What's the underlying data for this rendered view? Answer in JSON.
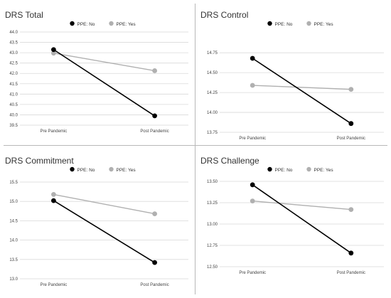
{
  "chart_data": [
    {
      "type": "line",
      "title": "DRS Total",
      "categories": [
        "Pre Pandemic",
        "Post Pandemic"
      ],
      "series": [
        {
          "name": "PPE: No",
          "values": [
            43.15,
            39.95
          ],
          "color": "#000000"
        },
        {
          "name": "PPE: Yes",
          "values": [
            42.98,
            42.13
          ],
          "color": "#b0b0b0"
        }
      ],
      "ylim": [
        39.5,
        44.0
      ],
      "yticks": [
        "39.5",
        "40.0",
        "40.5",
        "41.0",
        "41.5",
        "42.0",
        "42.5",
        "43.0",
        "43.5",
        "44.0"
      ],
      "legend": "top-center",
      "grid": true
    },
    {
      "type": "line",
      "title": "DRS Control",
      "categories": [
        "Pre Pandemic",
        "Post Pandemic"
      ],
      "series": [
        {
          "name": "PPE: No",
          "values": [
            14.68,
            13.86
          ],
          "color": "#000000"
        },
        {
          "name": "PPE: Yes",
          "values": [
            14.34,
            14.29
          ],
          "color": "#b0b0b0"
        }
      ],
      "ylim": [
        13.75,
        14.85
      ],
      "yticks": [
        "13.75",
        "14.00",
        "14.25",
        "14.50",
        "14.75"
      ],
      "legend": "top-center",
      "grid": true
    },
    {
      "type": "line",
      "title": "DRS Commitment",
      "categories": [
        "Pre Pandemic",
        "Post Pandemic"
      ],
      "series": [
        {
          "name": "PPE: No",
          "values": [
            15.02,
            13.42
          ],
          "color": "#000000"
        },
        {
          "name": "PPE: Yes",
          "values": [
            15.18,
            14.68
          ],
          "color": "#b0b0b0"
        }
      ],
      "ylim": [
        13.0,
        15.5
      ],
      "yticks": [
        "13.0",
        "13.5",
        "14.0",
        "14.5",
        "15.0",
        "15.5"
      ],
      "legend": "top-center",
      "grid": true
    },
    {
      "type": "line",
      "title": "DRS Challenge",
      "categories": [
        "Pre Pandemic",
        "Post Pandemic"
      ],
      "series": [
        {
          "name": "PPE: No",
          "values": [
            13.46,
            12.66
          ],
          "color": "#000000"
        },
        {
          "name": "PPE: Yes",
          "values": [
            13.27,
            13.17
          ],
          "color": "#b0b0b0"
        }
      ],
      "ylim": [
        12.5,
        13.5
      ],
      "yticks": [
        "12.50",
        "12.75",
        "13.00",
        "13.25",
        "13.50"
      ],
      "legend": "top-center",
      "grid": true
    }
  ]
}
